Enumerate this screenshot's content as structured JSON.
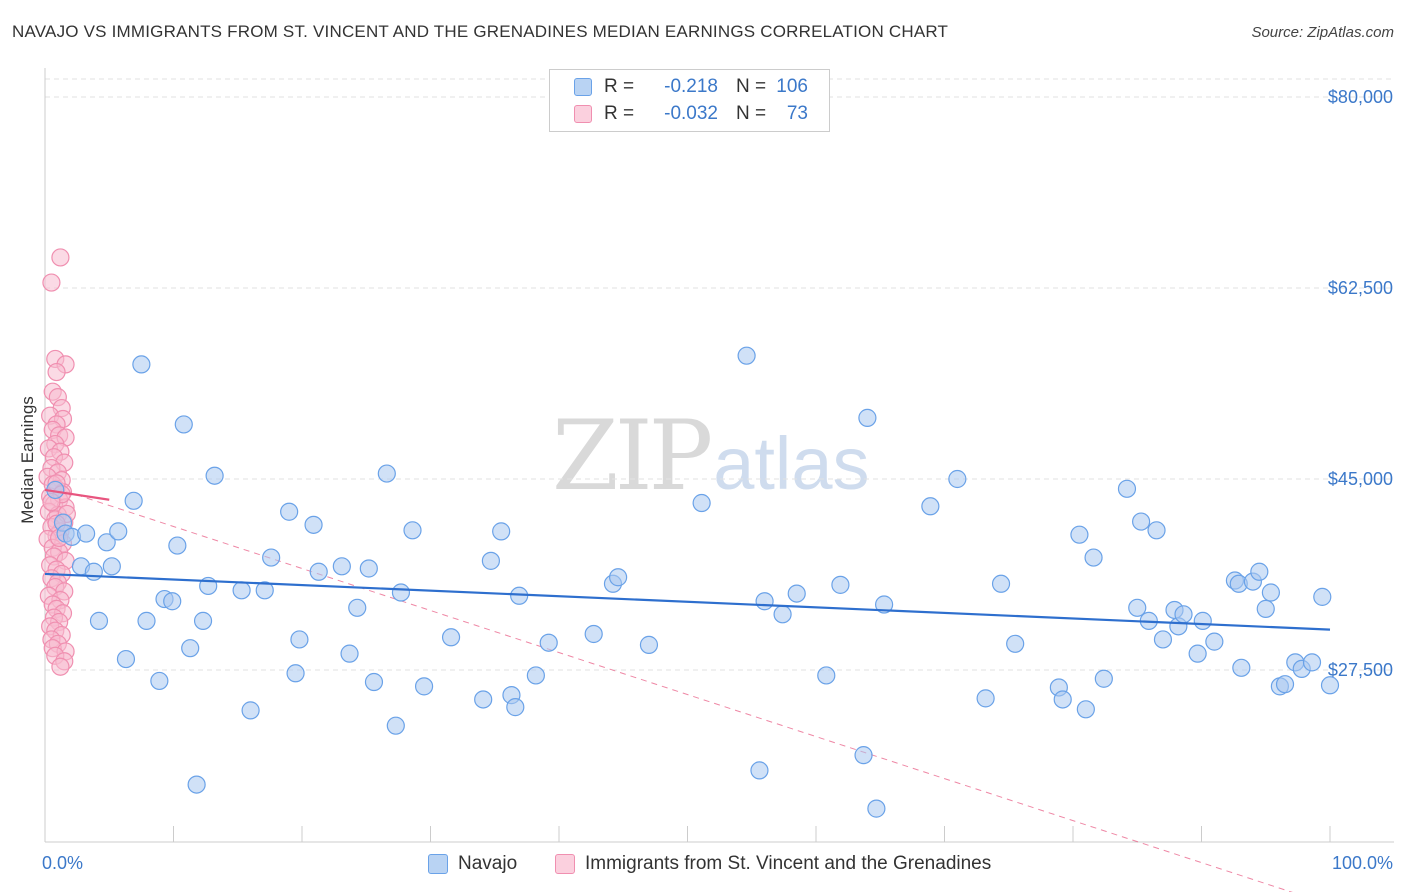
{
  "header": {
    "title": "NAVAJO VS IMMIGRANTS FROM ST. VINCENT AND THE GRENADINES MEDIAN EARNINGS CORRELATION CHART",
    "source": "Source: ZipAtlas.com"
  },
  "watermark": {
    "zip": "ZIP",
    "atlas": "atlas"
  },
  "legend": {
    "rows": [
      {
        "r_label": "R =",
        "r_value": "-0.218",
        "n_label": "N =",
        "n_value": "106",
        "color": "#6aa2e8"
      },
      {
        "r_label": "R =",
        "r_value": "-0.032",
        "n_label": "N =",
        "n_value": "73",
        "color": "#f08fb0"
      }
    ]
  },
  "bottom_legend": {
    "navajo": "Navajo",
    "immigrants": "Immigrants from St. Vincent and the Grenadines"
  },
  "colors": {
    "blue_fill": "#a9c8f0",
    "blue_stroke": "#6aa2e8",
    "blue_line": "#2e6fce",
    "pink_fill": "#f7bcd0",
    "pink_stroke": "#f08fb0",
    "pink_line": "#e8557f",
    "tick_text": "#3b78c9",
    "grid": "#e2e2e2"
  },
  "chart_data": {
    "type": "scatter",
    "title": "NAVAJO VS IMMIGRANTS FROM ST. VINCENT AND THE GRENADINES MEDIAN EARNINGS CORRELATION CHART",
    "xlabel": "",
    "ylabel": "Median Earnings",
    "xlim": [
      0,
      100
    ],
    "ylim": [
      11000,
      81500
    ],
    "x_tick_labels": [
      "0.0%",
      "100.0%"
    ],
    "y_ticks": [
      27500,
      45000,
      62500,
      80000
    ],
    "y_tick_labels": [
      "$27,500",
      "$45,000",
      "$62,500",
      "$80,000"
    ],
    "grid": true,
    "legend_position": "top-center",
    "series": [
      {
        "name": "Navajo",
        "trend": {
          "x0": 0,
          "y0": 36300,
          "x1": 100,
          "y1": 31200
        },
        "points": [
          [
            0.8,
            44000
          ],
          [
            1.4,
            41000
          ],
          [
            1.6,
            40000
          ],
          [
            2.1,
            39700
          ],
          [
            2.8,
            37000
          ],
          [
            3.2,
            40000
          ],
          [
            3.8,
            36500
          ],
          [
            4.2,
            32000
          ],
          [
            4.8,
            39200
          ],
          [
            5.2,
            37000
          ],
          [
            5.7,
            40200
          ],
          [
            6.3,
            28500
          ],
          [
            6.9,
            43000
          ],
          [
            7.5,
            55500
          ],
          [
            7.9,
            32000
          ],
          [
            8.9,
            26500
          ],
          [
            9.3,
            34000
          ],
          [
            9.9,
            33800
          ],
          [
            10.3,
            38900
          ],
          [
            10.8,
            50000
          ],
          [
            11.3,
            29500
          ],
          [
            11.8,
            17000
          ],
          [
            12.3,
            32000
          ],
          [
            12.7,
            35200
          ],
          [
            13.2,
            45300
          ],
          [
            15.3,
            34800
          ],
          [
            16.0,
            23800
          ],
          [
            17.1,
            34800
          ],
          [
            17.6,
            37800
          ],
          [
            19.0,
            42000
          ],
          [
            19.5,
            27200
          ],
          [
            19.8,
            30300
          ],
          [
            20.9,
            40800
          ],
          [
            21.3,
            36500
          ],
          [
            23.1,
            37000
          ],
          [
            23.7,
            29000
          ],
          [
            24.3,
            33200
          ],
          [
            25.2,
            36800
          ],
          [
            25.6,
            26400
          ],
          [
            26.6,
            45500
          ],
          [
            27.3,
            22400
          ],
          [
            27.7,
            34600
          ],
          [
            28.6,
            40300
          ],
          [
            29.5,
            26000
          ],
          [
            31.6,
            30500
          ],
          [
            34.1,
            24800
          ],
          [
            34.7,
            37500
          ],
          [
            35.5,
            40200
          ],
          [
            36.3,
            25200
          ],
          [
            36.6,
            24100
          ],
          [
            36.9,
            34300
          ],
          [
            38.2,
            27000
          ],
          [
            39.2,
            30000
          ],
          [
            42.7,
            30800
          ],
          [
            44.2,
            35400
          ],
          [
            44.6,
            36000
          ],
          [
            47.0,
            29800
          ],
          [
            51.1,
            42800
          ],
          [
            54.6,
            56300
          ],
          [
            55.6,
            18300
          ],
          [
            56.0,
            33800
          ],
          [
            57.4,
            32600
          ],
          [
            58.5,
            34500
          ],
          [
            60.8,
            27000
          ],
          [
            61.9,
            35300
          ],
          [
            63.7,
            19700
          ],
          [
            64.0,
            50600
          ],
          [
            64.7,
            14800
          ],
          [
            65.3,
            33500
          ],
          [
            68.9,
            42500
          ],
          [
            71.0,
            45000
          ],
          [
            73.2,
            24900
          ],
          [
            74.4,
            35400
          ],
          [
            75.5,
            29900
          ],
          [
            78.9,
            25900
          ],
          [
            79.2,
            24800
          ],
          [
            80.5,
            39900
          ],
          [
            81.0,
            23900
          ],
          [
            81.6,
            37800
          ],
          [
            82.4,
            26700
          ],
          [
            84.2,
            44100
          ],
          [
            85.0,
            33200
          ],
          [
            85.3,
            41100
          ],
          [
            85.9,
            32000
          ],
          [
            86.5,
            40300
          ],
          [
            87.0,
            30300
          ],
          [
            87.9,
            33000
          ],
          [
            88.2,
            31500
          ],
          [
            88.6,
            32600
          ],
          [
            89.7,
            29000
          ],
          [
            90.1,
            32000
          ],
          [
            91.0,
            30100
          ],
          [
            92.6,
            35700
          ],
          [
            92.9,
            35400
          ],
          [
            93.1,
            27700
          ],
          [
            94.0,
            35600
          ],
          [
            94.5,
            36500
          ],
          [
            95.0,
            33100
          ],
          [
            95.4,
            34600
          ],
          [
            96.1,
            26000
          ],
          [
            96.5,
            26200
          ],
          [
            97.3,
            28200
          ],
          [
            97.8,
            27600
          ],
          [
            98.6,
            28200
          ],
          [
            99.4,
            34200
          ],
          [
            100.0,
            26100
          ]
        ]
      },
      {
        "name": "Immigrants from St. Vincent and the Grenadines",
        "trend": {
          "x0": 0,
          "y0": 44000,
          "x1": 5,
          "y1": 43100
        },
        "trend_extended": {
          "x0": 0,
          "y0": 44500,
          "x1": 100,
          "y1": 6000
        },
        "points": [
          [
            0.5,
            63000
          ],
          [
            0.8,
            56000
          ],
          [
            1.2,
            65300
          ],
          [
            1.6,
            55500
          ],
          [
            0.9,
            54800
          ],
          [
            0.6,
            53000
          ],
          [
            1.0,
            52500
          ],
          [
            1.3,
            51500
          ],
          [
            0.4,
            50800
          ],
          [
            1.4,
            50500
          ],
          [
            0.9,
            50000
          ],
          [
            0.6,
            49500
          ],
          [
            1.1,
            49000
          ],
          [
            1.6,
            48800
          ],
          [
            0.8,
            48200
          ],
          [
            0.3,
            47800
          ],
          [
            1.2,
            47500
          ],
          [
            0.7,
            47000
          ],
          [
            1.5,
            46500
          ],
          [
            0.5,
            46000
          ],
          [
            1.0,
            45600
          ],
          [
            0.2,
            45200
          ],
          [
            1.3,
            44900
          ],
          [
            0.6,
            44500
          ],
          [
            0.9,
            44100
          ],
          [
            1.4,
            43800
          ],
          [
            0.4,
            43400
          ],
          [
            1.1,
            43100
          ],
          [
            0.7,
            42700
          ],
          [
            1.6,
            42400
          ],
          [
            0.3,
            42000
          ],
          [
            1.0,
            41700
          ],
          [
            0.8,
            41300
          ],
          [
            1.5,
            41000
          ],
          [
            0.5,
            40600
          ],
          [
            1.2,
            40200
          ],
          [
            0.9,
            39800
          ],
          [
            0.2,
            39500
          ],
          [
            1.4,
            39100
          ],
          [
            0.6,
            38700
          ],
          [
            1.1,
            38300
          ],
          [
            0.7,
            37900
          ],
          [
            1.6,
            37500
          ],
          [
            0.4,
            37100
          ],
          [
            0.9,
            36700
          ],
          [
            1.3,
            36300
          ],
          [
            0.5,
            35900
          ],
          [
            1.0,
            35500
          ],
          [
            0.8,
            35100
          ],
          [
            1.5,
            34700
          ],
          [
            0.3,
            34300
          ],
          [
            1.2,
            33900
          ],
          [
            0.6,
            33500
          ],
          [
            0.9,
            33100
          ],
          [
            1.4,
            32700
          ],
          [
            0.7,
            32300
          ],
          [
            1.1,
            31900
          ],
          [
            0.4,
            31500
          ],
          [
            0.8,
            31100
          ],
          [
            1.3,
            30700
          ],
          [
            0.5,
            30300
          ],
          [
            1.0,
            29900
          ],
          [
            0.6,
            29500
          ],
          [
            1.6,
            29200
          ],
          [
            0.8,
            28800
          ],
          [
            1.5,
            28300
          ],
          [
            1.2,
            27800
          ],
          [
            0.9,
            44600
          ],
          [
            1.3,
            43600
          ],
          [
            0.5,
            42900
          ],
          [
            1.7,
            41800
          ],
          [
            0.9,
            40900
          ],
          [
            1.1,
            39600
          ]
        ]
      }
    ]
  }
}
